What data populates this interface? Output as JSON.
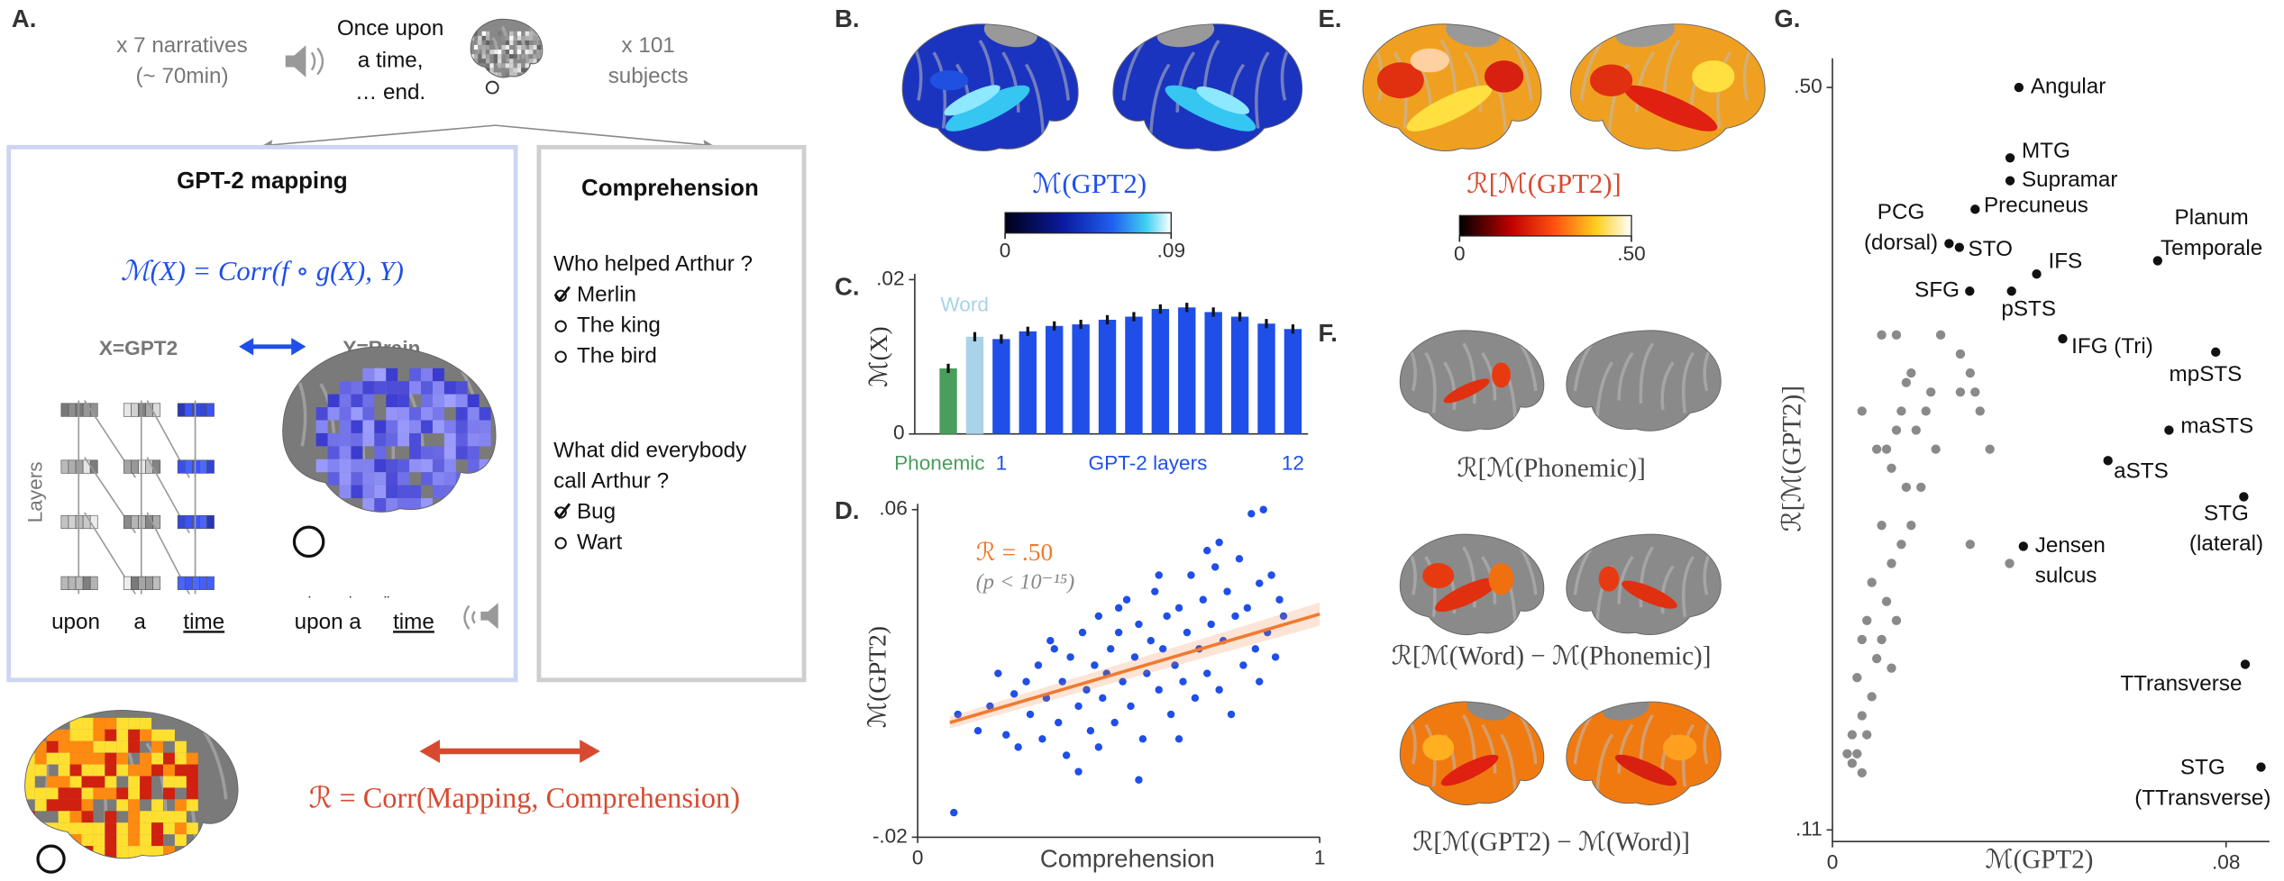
{
  "panel_letters": [
    "A.",
    "B.",
    "C.",
    "D.",
    "E.",
    "F.",
    "G."
  ],
  "panel_a": {
    "narratives": "x 7 narratives",
    "duration": "(~ 70min)",
    "story": [
      "Once upon",
      "a time,",
      "… end."
    ],
    "subjects": [
      "x 101",
      "subjects"
    ],
    "mapping_title": "GPT-2 mapping",
    "mapping_formula": "ℳ(X) = Corr(f ∘ g(X), Y)",
    "x_label": "X=GPT2",
    "y_label": "Y=Brain",
    "layers": "Layers",
    "tokens": [
      "upon",
      "a",
      "time"
    ],
    "heard": [
      "upon a",
      "time"
    ],
    "comprehension_title": "Comprehension",
    "questions": [
      {
        "text": [
          "Who helped Arthur ?"
        ],
        "options": [
          "Merlin",
          "The king",
          "The bird"
        ],
        "answer": 0
      },
      {
        "text": [
          "What did everybody",
          "call Arthur ?"
        ],
        "options": [
          "Bug",
          "Wart"
        ],
        "answer": 0
      }
    ],
    "corr_formula": "ℛ = Corr(Mapping, Comprehension)"
  },
  "panel_b": {
    "label": "ℳ(GPT2)",
    "colorbar_ticks": [
      0,
      {
        "value": 0.09,
        "label": ".09"
      }
    ]
  },
  "panel_e": {
    "label": "ℛ[ℳ(GPT2)]",
    "colorbar_ticks": [
      0,
      {
        "value": 0.5,
        "label": ".50"
      }
    ]
  },
  "panel_f": {
    "titles": [
      "ℛ[ℳ(Phonemic)]",
      "ℛ[ℳ(Word) − ℳ(Phonemic)]",
      "ℛ[ℳ(GPT2) − ℳ(Word)]"
    ]
  },
  "chart_data": [
    {
      "type": "bar",
      "ylabel": "ℳ(X)",
      "xlabel": "GPT-2 layers",
      "categories": [
        "Phonemic",
        "Word",
        "1",
        null,
        null,
        null,
        null,
        null,
        null,
        null,
        null,
        null,
        null,
        "12"
      ],
      "values": [
        0.0085,
        0.0126,
        0.0123,
        0.0133,
        0.014,
        0.0142,
        0.0148,
        0.0152,
        0.0162,
        0.0164,
        0.0158,
        0.0152,
        0.0143,
        0.0136
      ],
      "errors": [
        0.0006,
        0.0006,
        0.0006,
        0.0006,
        0.0006,
        0.0006,
        0.0006,
        0.0006,
        0.0006,
        0.0006,
        0.0006,
        0.0006,
        0.0006,
        0.0006
      ],
      "colors": [
        "#4a9e5c",
        "#a9d3e8",
        "#1f4fe8",
        "#1f4fe8",
        "#1f4fe8",
        "#1f4fe8",
        "#1f4fe8",
        "#1f4fe8",
        "#1f4fe8",
        "#1f4fe8",
        "#1f4fe8",
        "#1f4fe8",
        "#1f4fe8",
        "#1f4fe8"
      ],
      "ylim": [
        0,
        0.02
      ],
      "yticks": [
        0,
        {
          "value": 0.02,
          "label": ".02"
        }
      ]
    },
    {
      "type": "scatter",
      "xlabel": "Comprehension",
      "ylabel": "ℳ(GPT2)",
      "annotation": "ℛ = .50",
      "p_annotation": "(p < 10⁻¹⁵)",
      "color": "#1f4fe8",
      "x": [
        0.09,
        0.1,
        0.15,
        0.18,
        0.2,
        0.22,
        0.24,
        0.25,
        0.27,
        0.28,
        0.3,
        0.31,
        0.32,
        0.34,
        0.35,
        0.36,
        0.37,
        0.38,
        0.4,
        0.41,
        0.42,
        0.43,
        0.44,
        0.45,
        0.46,
        0.47,
        0.48,
        0.49,
        0.5,
        0.51,
        0.52,
        0.53,
        0.54,
        0.55,
        0.56,
        0.57,
        0.58,
        0.59,
        0.6,
        0.61,
        0.62,
        0.63,
        0.64,
        0.65,
        0.66,
        0.67,
        0.68,
        0.69,
        0.7,
        0.71,
        0.72,
        0.73,
        0.74,
        0.75,
        0.76,
        0.77,
        0.78,
        0.79,
        0.8,
        0.81,
        0.82,
        0.83,
        0.84,
        0.85,
        0.86,
        0.87,
        0.88,
        0.89,
        0.9,
        0.91,
        0.55,
        0.4,
        0.33,
        0.65,
        0.72,
        0.85,
        0.45,
        0.6,
        0.75,
        0.5
      ],
      "values": [
        -0.014,
        0.01,
        0.006,
        0.012,
        0.02,
        0.005,
        0.015,
        0.002,
        0.018,
        0.01,
        0.022,
        0.004,
        0.014,
        0.026,
        0.008,
        0.018,
        0.0,
        0.024,
        0.012,
        0.03,
        0.016,
        0.006,
        0.022,
        0.034,
        0.014,
        0.02,
        0.026,
        0.008,
        0.03,
        0.018,
        0.038,
        0.012,
        0.024,
        0.032,
        0.004,
        0.02,
        0.028,
        0.04,
        0.016,
        0.026,
        0.034,
        0.01,
        0.022,
        0.036,
        0.018,
        0.03,
        0.044,
        0.014,
        0.026,
        0.038,
        0.02,
        0.032,
        0.046,
        0.016,
        0.028,
        0.04,
        0.01,
        0.034,
        0.048,
        0.022,
        0.036,
        0.059,
        0.026,
        0.042,
        0.06,
        0.03,
        0.044,
        0.024,
        0.038,
        0.034,
        -0.006,
        -0.004,
        0.028,
        0.004,
        0.05,
        0.018,
        0.002,
        0.044,
        0.052,
        0.036
      ],
      "fit": {
        "color": "#f07a30",
        "x": [
          0.08,
          1
        ],
        "values": [
          0.008,
          0.0345
        ]
      },
      "xlim": [
        0,
        1
      ],
      "ylim": [
        -0.02,
        0.06
      ],
      "xticks": [
        0,
        1
      ],
      "yticks": [
        {
          "value": -0.02,
          "label": "-.02"
        },
        {
          "value": 0.06,
          "label": ".06"
        }
      ]
    },
    {
      "type": "scatter",
      "xlabel": "ℳ(GPT2)",
      "ylabel": "ℛ[ℳ(GPT2)]",
      "series": [
        {
          "color": "#111111",
          "labels": [
            "Angular",
            "MTG",
            "Supramar",
            "Precuneus",
            [
              "PCG",
              "(dorsal)"
            ],
            "STO",
            "IFS",
            "SFG",
            "pSTS",
            "IFG (Tri)",
            [
              "Planum",
              "Temporale"
            ],
            "mpSTS",
            "maSTS",
            "aSTS",
            [
              "STG",
              "(lateral)"
            ],
            [
              "Jensen",
              "sulcus"
            ],
            "TTransverse",
            [
              "STG",
              "(TTransverse)"
            ]
          ],
          "x": [
            0.0379,
            0.0361,
            0.0361,
            0.029,
            0.0237,
            0.0258,
            0.0415,
            0.0279,
            0.0364,
            0.0468,
            0.0661,
            0.0779,
            0.0684,
            0.056,
            0.0836,
            0.0388,
            0.0839,
            0.0871
          ],
          "values": [
            0.5,
            0.463,
            0.451,
            0.436,
            0.418,
            0.416,
            0.402,
            0.393,
            0.393,
            0.368,
            0.409,
            0.361,
            0.32,
            0.304,
            0.285,
            0.259,
            0.197,
            0.143
          ]
        },
        {
          "color": "#8a8a8a",
          "x": [
            0.006,
            0.01,
            0.013,
            0.015,
            0.016,
            0.014,
            0.013,
            0.017,
            0.019,
            0.02,
            0.022,
            0.026,
            0.028,
            0.026,
            0.029,
            0.03,
            0.032,
            0.021,
            0.011,
            0.015,
            0.012,
            0.009,
            0.018,
            0.01,
            0.014,
            0.016,
            0.012,
            0.028,
            0.036,
            0.008,
            0.011,
            0.007,
            0.013,
            0.01,
            0.006,
            0.009,
            0.012,
            0.005,
            0.008,
            0.006,
            0.004,
            0.007,
            0.003,
            0.005,
            0.006,
            0.004
          ],
          "values": [
            0.33,
            0.37,
            0.37,
            0.345,
            0.35,
            0.33,
            0.32,
            0.32,
            0.33,
            0.34,
            0.37,
            0.36,
            0.35,
            0.34,
            0.34,
            0.33,
            0.31,
            0.31,
            0.31,
            0.29,
            0.3,
            0.31,
            0.29,
            0.27,
            0.26,
            0.27,
            0.25,
            0.26,
            0.25,
            0.24,
            0.23,
            0.22,
            0.22,
            0.21,
            0.21,
            0.2,
            0.195,
            0.19,
            0.18,
            0.17,
            0.16,
            0.16,
            0.15,
            0.15,
            0.14,
            0.145
          ]
        }
      ],
      "xlim": [
        0,
        0.09
      ],
      "ylim": [
        0.11,
        0.5
      ],
      "xticks": [
        0,
        {
          "value": 0.08,
          "label": ".08"
        }
      ],
      "yticks": [
        {
          "value": 0.11,
          "label": ".11"
        },
        {
          "value": 0.5,
          "label": ".50"
        }
      ]
    }
  ]
}
